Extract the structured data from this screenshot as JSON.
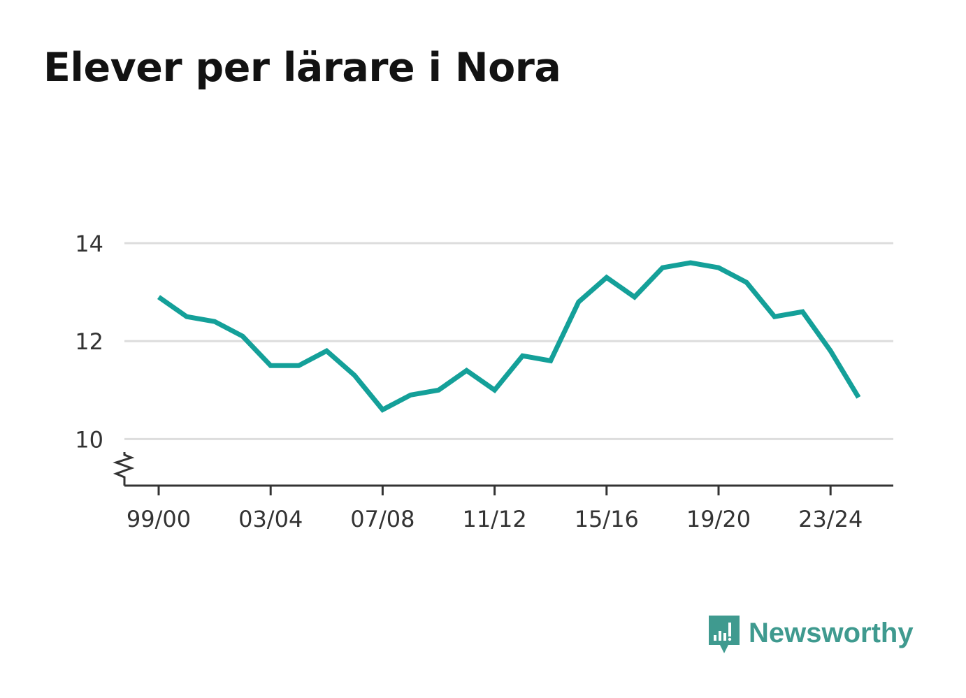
{
  "header": {
    "title": "Elever per lärare i Nora"
  },
  "chart_data": {
    "type": "line",
    "x": [
      "99/00",
      "00/01",
      "01/02",
      "02/03",
      "03/04",
      "04/05",
      "05/06",
      "06/07",
      "07/08",
      "08/09",
      "09/10",
      "10/11",
      "11/12",
      "12/13",
      "13/14",
      "14/15",
      "15/16",
      "16/17",
      "17/18",
      "18/19",
      "19/20",
      "20/21",
      "21/22",
      "22/23",
      "23/24",
      "24/25"
    ],
    "series": [
      {
        "values": [
          12.9,
          12.5,
          12.4,
          12.1,
          11.5,
          11.5,
          11.8,
          11.3,
          10.6,
          10.9,
          11.0,
          11.4,
          11.0,
          11.7,
          11.6,
          12.8,
          13.3,
          12.9,
          13.5,
          13.6,
          13.5,
          13.2,
          12.5,
          12.6,
          11.8,
          10.85
        ],
        "color": "#14a099"
      }
    ],
    "x_tick_labels": [
      "99/00",
      "03/04",
      "07/08",
      "11/12",
      "15/16",
      "19/20",
      "23/24"
    ],
    "y_ticks": [
      "10",
      "12",
      "14"
    ],
    "ylim": [
      9.05,
      14.4
    ],
    "y_axis_break": true,
    "grid": true,
    "colors": {
      "line": "#14a099",
      "grid": "#dddddd",
      "axis": "#333333"
    }
  },
  "branding": {
    "name": "Newsworthy",
    "icon": "bar-chart-speech-bubble-icon",
    "color": "#3f9a8f"
  }
}
